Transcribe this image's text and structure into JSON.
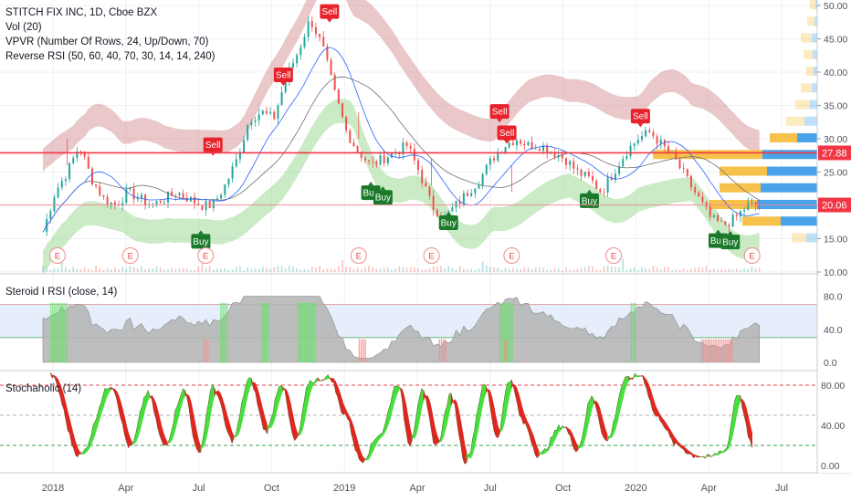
{
  "legend": {
    "main": [
      "STITCH FIX INC, 1D, Cboe BZX",
      "Vol (20)",
      "VPVR (Number Of Rows, 24, Up/Down, 70)",
      "Reverse RSI (50, 60, 40, 70, 30, 14, 14, 240)"
    ],
    "rsi": "Steroid Ⅰ RSI (close, 14)",
    "stoch": "Stochaholic (14)"
  },
  "colors": {
    "up": "#26a69a",
    "down": "#ef5350",
    "band_upper": "#d9999c",
    "band_lower": "#a8dca0",
    "buy": "#1b7a2a",
    "sell": "#e8222b",
    "price_line": "#f23645",
    "vpvr_up": "#4aa3ea",
    "vpvr_down": "#f7c24b",
    "rsi_fill": "#b3b3b3",
    "stoch_up": "#44e03c",
    "stoch_down": "#e0261e"
  },
  "chart_data": [
    {
      "type": "candlestick",
      "name": "STITCH FIX INC",
      "x_ticks": [
        "2018",
        "Apr",
        "Jul",
        "Oct",
        "2019",
        "Apr",
        "Jul",
        "Oct",
        "2020",
        "Apr",
        "Jul"
      ],
      "y_ticks": [
        "50.00",
        "45.00",
        "40.00",
        "35.00",
        "30.00",
        "25.00",
        "20.00",
        "15.00",
        "10.00"
      ],
      "ylim": [
        10,
        51
      ],
      "price_labels": [
        {
          "value": 27.88,
          "text": "27.88"
        },
        {
          "value": 20.06,
          "text": "20.06"
        }
      ],
      "close_path": [
        [
          0,
          16
        ],
        [
          0.5,
          22
        ],
        [
          1,
          25
        ],
        [
          1.5,
          29
        ],
        [
          2,
          24
        ],
        [
          2.5,
          21
        ],
        [
          3,
          20
        ],
        [
          3.5,
          22
        ],
        [
          4,
          21
        ],
        [
          4.5,
          20
        ],
        [
          5,
          21
        ],
        [
          5.5,
          22
        ],
        [
          6,
          21
        ],
        [
          6.5,
          20
        ],
        [
          7,
          20
        ],
        [
          7.5,
          23
        ],
        [
          8,
          27
        ],
        [
          8.5,
          33
        ],
        [
          9,
          34
        ],
        [
          9.5,
          33
        ],
        [
          10,
          39
        ],
        [
          10.5,
          43
        ],
        [
          11,
          48
        ],
        [
          11.5,
          44
        ],
        [
          12,
          37
        ],
        [
          12.5,
          31
        ],
        [
          13,
          28
        ],
        [
          13.5,
          26
        ],
        [
          14,
          27
        ],
        [
          14.5,
          28
        ],
        [
          15,
          29
        ],
        [
          15.5,
          25
        ],
        [
          16,
          20
        ],
        [
          16.5,
          18
        ],
        [
          17,
          20
        ],
        [
          17.5,
          22
        ],
        [
          18,
          24
        ],
        [
          18.5,
          27
        ],
        [
          19,
          29
        ],
        [
          19.5,
          30
        ],
        [
          20,
          29
        ],
        [
          20.5,
          29
        ],
        [
          21,
          28
        ],
        [
          21.5,
          27
        ],
        [
          22,
          25
        ],
        [
          22.5,
          24
        ],
        [
          23,
          22
        ],
        [
          23.5,
          25
        ],
        [
          24,
          28
        ],
        [
          24.5,
          30
        ],
        [
          25,
          31
        ],
        [
          25.5,
          29
        ],
        [
          26,
          27
        ],
        [
          26.5,
          24
        ],
        [
          27,
          21
        ],
        [
          27.5,
          18
        ],
        [
          28,
          17
        ],
        [
          28.5,
          18
        ],
        [
          29,
          20
        ]
      ],
      "signals": [
        {
          "label": "Sell",
          "x": 7.0,
          "y": 28.0
        },
        {
          "label": "Sell",
          "x": 9.9,
          "y": 38.5
        },
        {
          "label": "Sell",
          "x": 11.8,
          "y": 48.0
        },
        {
          "label": "Buy",
          "x": 6.5,
          "y": 15.7
        },
        {
          "label": "Buy",
          "x": 13.5,
          "y": 23.0
        },
        {
          "label": "Buy",
          "x": 14.0,
          "y": 22.3
        },
        {
          "label": "Buy",
          "x": 16.7,
          "y": 18.5
        },
        {
          "label": "Sell",
          "x": 18.8,
          "y": 33.0
        },
        {
          "label": "Sell",
          "x": 19.1,
          "y": 29.8
        },
        {
          "label": "Buy",
          "x": 22.5,
          "y": 21.8
        },
        {
          "label": "Sell",
          "x": 24.6,
          "y": 32.3
        },
        {
          "label": "Buy",
          "x": 27.8,
          "y": 15.8
        },
        {
          "label": "Buy",
          "x": 28.3,
          "y": 15.6
        }
      ],
      "earnings": [
        {
          "label": "E",
          "x": 0.6
        },
        {
          "label": "E",
          "x": 3.6
        },
        {
          "label": "E",
          "x": 6.7
        },
        {
          "label": "E",
          "x": 13.0
        },
        {
          "label": "E",
          "x": 16.0
        },
        {
          "label": "E",
          "x": 19.3
        },
        {
          "label": "E",
          "x": 23.5
        },
        {
          "label": "E",
          "x": 29.2
        }
      ]
    },
    {
      "type": "area",
      "name": "Steroid RSI",
      "y_ticks": [
        "80.0",
        "40.0",
        "0.0"
      ],
      "ylim": [
        0,
        90
      ],
      "levels": [
        70,
        30
      ]
    },
    {
      "type": "line",
      "name": "Stochaholic",
      "y_ticks": [
        "80.00",
        "40.00",
        "0.00"
      ],
      "ylim": [
        -8,
        100
      ],
      "levels": [
        80,
        50,
        20
      ]
    }
  ]
}
